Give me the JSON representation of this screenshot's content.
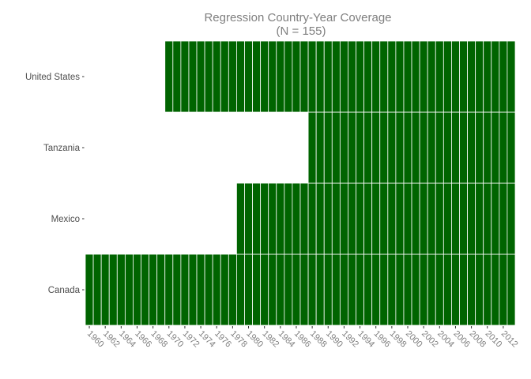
{
  "chart_data": {
    "type": "heatmap",
    "title": "Regression Country-Year Coverage",
    "subtitle": "(N = 155)",
    "xlabel": "",
    "ylabel": "",
    "x_range": [
      1959,
      2013
    ],
    "x_tick_labels": [
      "1960",
      "1962",
      "1964",
      "1966",
      "1968",
      "1970",
      "1972",
      "1974",
      "1976",
      "1978",
      "1980",
      "1982",
      "1984",
      "1986",
      "1988",
      "1990",
      "1992",
      "1994",
      "1996",
      "1998",
      "2000",
      "2002",
      "2004",
      "2006",
      "2008",
      "2010",
      "2012"
    ],
    "countries_bottom_to_top": [
      "Canada",
      "Mexico",
      "Tanzania",
      "United States"
    ],
    "coverage": [
      {
        "country": "Canada",
        "start_year": 1960,
        "end_year": 2013
      },
      {
        "country": "Mexico",
        "start_year": 1979,
        "end_year": 2013
      },
      {
        "country": "Tanzania",
        "start_year": 1988,
        "end_year": 2013
      },
      {
        "country": "United States",
        "start_year": 1970,
        "end_year": 2013
      }
    ],
    "fill_color": "#006400",
    "grid": false,
    "legend": "none"
  }
}
